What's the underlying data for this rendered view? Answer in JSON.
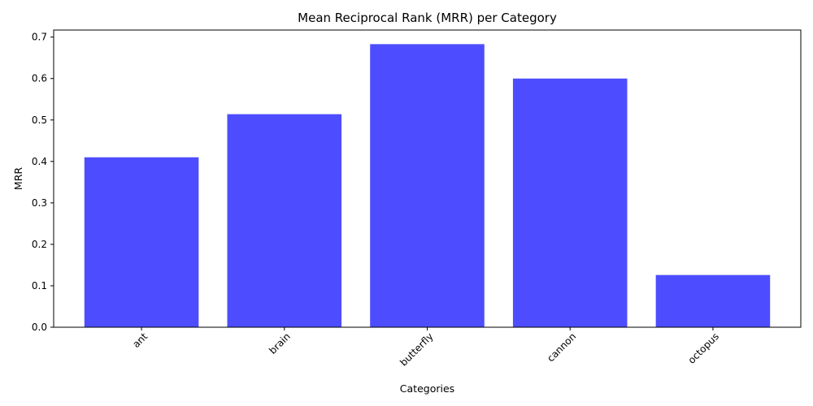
{
  "chart_data": {
    "type": "bar",
    "title": "Mean Reciprocal Rank (MRR) per Category",
    "xlabel": "Categories",
    "ylabel": "MRR",
    "categories": [
      "ant",
      "brain",
      "butterfly",
      "cannon",
      "octopus"
    ],
    "values": [
      0.41,
      0.514,
      0.683,
      0.6,
      0.126
    ],
    "ylim": [
      0,
      0.717
    ],
    "yticks": [
      "0.0",
      "0.1",
      "0.2",
      "0.3",
      "0.4",
      "0.5",
      "0.6",
      "0.7"
    ],
    "bar_color": "#4d4dff",
    "xtick_rotation": 45,
    "grid": false
  }
}
